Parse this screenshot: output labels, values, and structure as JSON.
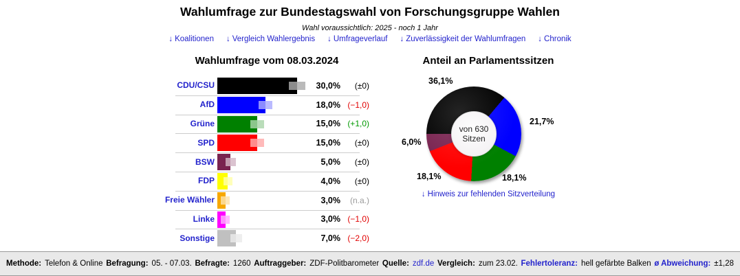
{
  "header": {
    "title": "Wahlumfrage zur Bundestagswahl von Forschungsgruppe Wahlen",
    "subtitle": "Wahl voraussichtlich: 2025 - noch 1 Jahr",
    "nav_links": [
      {
        "label": "Koalitionen"
      },
      {
        "label": "Vergleich Wahlergebnis"
      },
      {
        "label": "Umfrageverlauf"
      },
      {
        "label": "Zuverlässigkeit der Wahlumfragen"
      },
      {
        "label": "Chronik"
      }
    ]
  },
  "icons": {
    "down_arrow": "↓"
  },
  "poll": {
    "title": "Wahlumfrage vom 08.03.2024"
  },
  "seats": {
    "title": "Anteil an Parlamentssitzen",
    "center_line1": "von 630",
    "center_line2": "Sitzen",
    "hint_link": "Hinweis zur fehlenden Sitzverteilung"
  },
  "chart_data": [
    {
      "type": "bar",
      "title": "Wahlumfrage vom 08.03.2024",
      "orientation": "horizontal",
      "unit": "%",
      "xlim": [
        0,
        33
      ],
      "note": "light colored bar ends show error tolerance (Fehlertoleranz)",
      "rows": [
        {
          "party": "CDU/CSU",
          "value": 30.0,
          "value_label": "30,0%",
          "change_label": "(±0)",
          "change": "neutral",
          "color": "#000000",
          "tolerance": 3.0
        },
        {
          "party": "AfD",
          "value": 18.0,
          "value_label": "18,0%",
          "change_label": "(−1,0)",
          "change": "negative",
          "color": "#0000ff",
          "tolerance": 2.6
        },
        {
          "party": "Grüne",
          "value": 15.0,
          "value_label": "15,0%",
          "change_label": "(+1,0)",
          "change": "positive",
          "color": "#008000",
          "tolerance": 2.6
        },
        {
          "party": "SPD",
          "value": 15.0,
          "value_label": "15,0%",
          "change_label": "(±0)",
          "change": "neutral",
          "color": "#ff0000",
          "tolerance": 2.6
        },
        {
          "party": "BSW",
          "value": 5.0,
          "value_label": "5,0%",
          "change_label": "(±0)",
          "change": "neutral",
          "color": "#792350",
          "tolerance": 2.0
        },
        {
          "party": "FDP",
          "value": 4.0,
          "value_label": "4,0%",
          "change_label": "(±0)",
          "change": "neutral",
          "color": "#ffff00",
          "tolerance": 1.7
        },
        {
          "party": "Freie Wähler",
          "value": 3.0,
          "value_label": "3,0%",
          "change_label": "(n.a.)",
          "change": "na",
          "color": "#f7a800",
          "tolerance": 1.7
        },
        {
          "party": "Linke",
          "value": 3.0,
          "value_label": "3,0%",
          "change_label": "(−1,0)",
          "change": "negative",
          "color": "#ff00ff",
          "tolerance": 1.7
        },
        {
          "party": "Sonstige",
          "value": 7.0,
          "value_label": "7,0%",
          "change_label": "(−2,0)",
          "change": "negative",
          "color": "#c0c0c0",
          "tolerance": 2.2
        }
      ]
    },
    {
      "type": "pie",
      "donut": true,
      "title": "Anteil an Parlamentssitzen",
      "total_label": "von 630 Sitzen",
      "start_angle_deg": 270,
      "segments": [
        {
          "party": "CDU/CSU",
          "pct": 36.1,
          "label": "36,1%",
          "color": "#000000",
          "label_pos": "top-left"
        },
        {
          "party": "AfD",
          "pct": 21.7,
          "label": "21,7%",
          "color": "#0000ff",
          "label_pos": "right"
        },
        {
          "party": "Grüne",
          "pct": 18.1,
          "label": "18,1%",
          "color": "#008000",
          "label_pos": "bottom-right"
        },
        {
          "party": "SPD",
          "pct": 18.1,
          "label": "18,1%",
          "color": "#ff0000",
          "label_pos": "bottom-left"
        },
        {
          "party": "BSW",
          "pct": 6.0,
          "label": "6,0%",
          "color": "#792350",
          "label_pos": "left"
        }
      ]
    }
  ],
  "footer": {
    "items": [
      {
        "label": "Methode:",
        "value": "Telefon & Online"
      },
      {
        "label": "Befragung:",
        "value": "05. - 07.03."
      },
      {
        "label": "Befragte:",
        "value": "1260"
      },
      {
        "label": "Auftraggeber:",
        "value": "ZDF-Politbarometer"
      },
      {
        "label": "Quelle:",
        "value": "zdf.de",
        "value_is_link": true
      },
      {
        "label": "Vergleich:",
        "value": "zum 23.02."
      },
      {
        "label": "Fehlertoleranz:",
        "value": "hell gefärbte Balken",
        "label_is_link": true
      },
      {
        "label": "ø Abweichung:",
        "value": "±1,28",
        "label_is_link": true
      }
    ]
  },
  "colors": {
    "link_blue": "#2222cc",
    "change_positive": "#009900",
    "change_negative": "#e10000",
    "change_neutral": "#000000",
    "change_na": "#999999",
    "row_separator": "#cccccc",
    "footer_background": "#e9e9e9",
    "footer_border": "#999999"
  }
}
